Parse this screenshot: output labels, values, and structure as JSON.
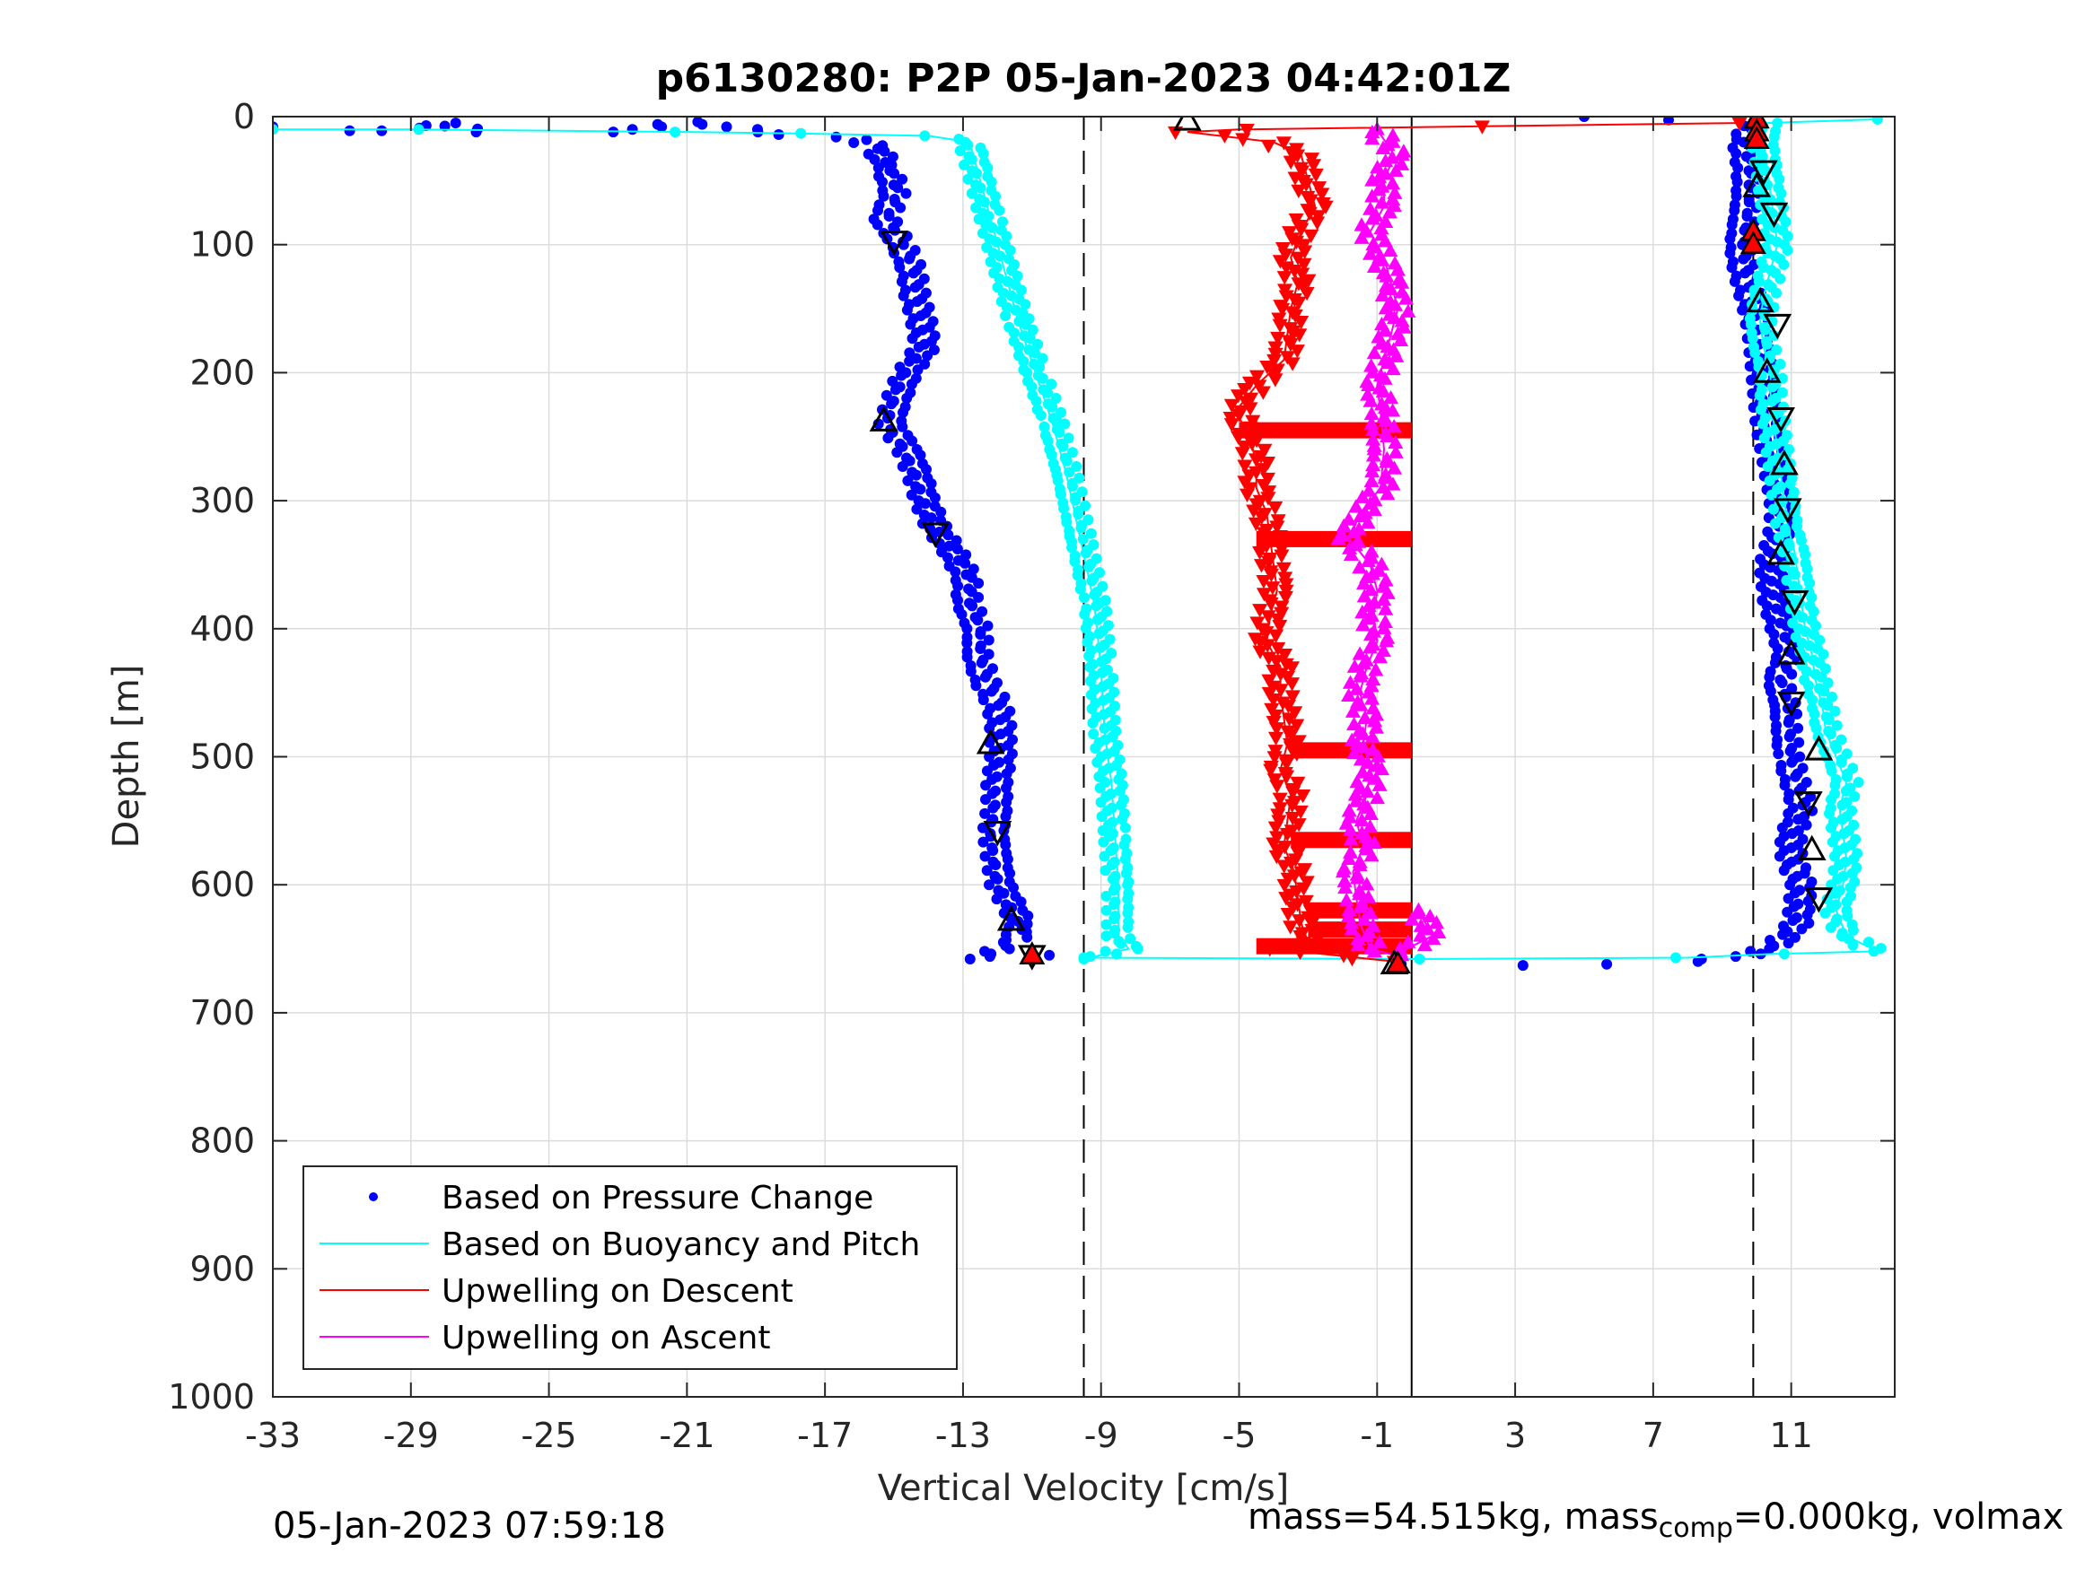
{
  "chart_data": {
    "type": "scatter",
    "title": "p6130280: P2P 05-Jan-2023 04:42:01Z",
    "xlabel": "Vertical Velocity [cm/s]",
    "ylabel": "Depth [m]",
    "xlim": [
      -33,
      14
    ],
    "ylim": [
      1000,
      0
    ],
    "y_reversed": true,
    "grid": true,
    "xticks": [
      -33,
      -29,
      -25,
      -21,
      -17,
      -13,
      -9,
      -5,
      -1,
      3,
      7,
      11
    ],
    "yticks": [
      0,
      100,
      200,
      300,
      400,
      500,
      600,
      700,
      800,
      900,
      1000
    ],
    "legend_position": "lower-left",
    "reference_lines": [
      {
        "x": -9.5,
        "style": "dashed",
        "depth_range": [
          0,
          1000
        ]
      },
      {
        "x": 9.9,
        "style": "dashed",
        "depth_range": [
          0,
          1000
        ]
      },
      {
        "x": 0,
        "style": "solid",
        "depth_range": [
          0,
          1000
        ]
      }
    ],
    "series": [
      {
        "name": "Based on Pressure Change",
        "color": "#0000ff",
        "marker": "dot",
        "descent": [
          [
            -33,
            8
          ],
          [
            -31,
            11
          ],
          [
            -29.5,
            11
          ],
          [
            -28,
            5
          ],
          [
            -27,
            12
          ],
          [
            -23,
            12
          ],
          [
            -21,
            4
          ],
          [
            -18,
            14
          ],
          [
            -16,
            18
          ],
          [
            -15.5,
            25
          ],
          [
            -15.2,
            40
          ],
          [
            -15,
            60
          ],
          [
            -15.3,
            80
          ],
          [
            -14.8,
            100
          ],
          [
            -14.5,
            120
          ],
          [
            -14.4,
            140
          ],
          [
            -14.2,
            160
          ],
          [
            -14.1,
            180
          ],
          [
            -14.6,
            200
          ],
          [
            -14.9,
            220
          ],
          [
            -15.1,
            240
          ],
          [
            -14.6,
            260
          ],
          [
            -14.3,
            280
          ],
          [
            -14.1,
            300
          ],
          [
            -13.8,
            320
          ],
          [
            -13.3,
            340
          ],
          [
            -12.9,
            360
          ],
          [
            -12.9,
            380
          ],
          [
            -12.6,
            400
          ],
          [
            -12.6,
            420
          ],
          [
            -12.4,
            440
          ],
          [
            -12.0,
            460
          ],
          [
            -11.9,
            480
          ],
          [
            -11.9,
            500
          ],
          [
            -12.0,
            520
          ],
          [
            -12.0,
            540
          ],
          [
            -12.1,
            560
          ],
          [
            -12.0,
            580
          ],
          [
            -11.9,
            600
          ],
          [
            -11.5,
            620
          ],
          [
            -11.3,
            635
          ],
          [
            -11.6,
            645
          ],
          [
            -12.0,
            650
          ],
          [
            -12.5,
            658
          ],
          [
            -10.5,
            655
          ]
        ],
        "ascent": [
          [
            -0.3,
            662
          ],
          [
            3,
            663
          ],
          [
            6,
            662
          ],
          [
            8,
            660
          ],
          [
            9.5,
            656
          ],
          [
            10.5,
            650
          ],
          [
            11.2,
            630
          ],
          [
            11.3,
            600
          ],
          [
            11.0,
            580
          ],
          [
            11.0,
            560
          ],
          [
            11.3,
            540
          ],
          [
            10.9,
            500
          ],
          [
            10.8,
            460
          ],
          [
            10.6,
            440
          ],
          [
            10.9,
            420
          ],
          [
            10.7,
            400
          ],
          [
            10.5,
            380
          ],
          [
            10.4,
            350
          ],
          [
            10.7,
            320
          ],
          [
            10.7,
            300
          ],
          [
            10.5,
            270
          ],
          [
            10.3,
            240
          ],
          [
            10.2,
            210
          ],
          [
            10.1,
            180
          ],
          [
            10.0,
            160
          ],
          [
            9.8,
            140
          ],
          [
            9.6,
            120
          ],
          [
            9.5,
            100
          ],
          [
            9.6,
            80
          ],
          [
            9.7,
            60
          ],
          [
            9.7,
            40
          ],
          [
            9.6,
            20
          ],
          [
            9.9,
            5
          ],
          [
            5,
            0
          ]
        ]
      },
      {
        "name": "Based on Buoyancy and Pitch",
        "color": "#00ffff",
        "marker": "line-dot",
        "descent": [
          [
            -33,
            10
          ],
          [
            -29,
            10
          ],
          [
            -21,
            12
          ],
          [
            -18,
            13
          ],
          [
            -14,
            15
          ],
          [
            -12.8,
            20
          ],
          [
            -12.6,
            40
          ],
          [
            -12.2,
            80
          ],
          [
            -11.8,
            120
          ],
          [
            -11.4,
            160
          ],
          [
            -10.9,
            200
          ],
          [
            -10.4,
            240
          ],
          [
            -10.0,
            280
          ],
          [
            -9.6,
            330
          ],
          [
            -9.2,
            380
          ],
          [
            -9.0,
            430
          ],
          [
            -8.9,
            480
          ],
          [
            -8.7,
            520
          ],
          [
            -8.6,
            560
          ],
          [
            -8.5,
            600
          ],
          [
            -8.5,
            640
          ],
          [
            -8.2,
            650
          ],
          [
            -9.5,
            658
          ]
        ],
        "ascent": [
          [
            -9.5,
            657
          ],
          [
            0,
            658
          ],
          [
            8,
            657
          ],
          [
            10.5,
            654
          ],
          [
            13.5,
            652
          ],
          [
            12.6,
            640
          ],
          [
            12.3,
            620
          ],
          [
            12.5,
            600
          ],
          [
            12.6,
            580
          ],
          [
            12.5,
            560
          ],
          [
            12.4,
            540
          ],
          [
            12.6,
            520
          ],
          [
            12.3,
            500
          ],
          [
            12.0,
            480
          ],
          [
            11.9,
            460
          ],
          [
            11.7,
            440
          ],
          [
            11.6,
            420
          ],
          [
            11.4,
            400
          ],
          [
            11.3,
            380
          ],
          [
            11.2,
            360
          ],
          [
            11.1,
            340
          ],
          [
            10.9,
            320
          ],
          [
            10.8,
            300
          ],
          [
            10.7,
            280
          ],
          [
            10.6,
            260
          ],
          [
            10.5,
            240
          ],
          [
            10.4,
            220
          ],
          [
            10.4,
            200
          ],
          [
            10.2,
            180
          ],
          [
            10.1,
            160
          ],
          [
            10.2,
            140
          ],
          [
            10.4,
            120
          ],
          [
            10.6,
            100
          ],
          [
            10.5,
            80
          ],
          [
            10.4,
            60
          ],
          [
            10.3,
            40
          ],
          [
            10.2,
            20
          ],
          [
            10.3,
            5
          ],
          [
            13.5,
            2
          ]
        ]
      },
      {
        "name": "Upwelling on Descent",
        "color": "#ff0000",
        "marker": "triangle-down",
        "profile": [
          [
            9.5,
            5
          ],
          [
            -5,
            10
          ],
          [
            -6.5,
            12
          ],
          [
            -4,
            20
          ],
          [
            -3.2,
            30
          ],
          [
            -3.0,
            50
          ],
          [
            -2.8,
            70
          ],
          [
            -3.2,
            90
          ],
          [
            -3.5,
            110
          ],
          [
            -3.3,
            130
          ],
          [
            -3.5,
            150
          ],
          [
            -3.6,
            170
          ],
          [
            -3.7,
            190
          ],
          [
            -4.5,
            210
          ],
          [
            -5.1,
            230
          ],
          [
            -4.7,
            250
          ],
          [
            -4.5,
            270
          ],
          [
            -4.5,
            290
          ],
          [
            -4.2,
            310
          ],
          [
            -4.1,
            330
          ],
          [
            -4.0,
            350
          ],
          [
            -3.9,
            370
          ],
          [
            -4.1,
            390
          ],
          [
            -4.2,
            410
          ],
          [
            -3.8,
            430
          ],
          [
            -3.8,
            450
          ],
          [
            -3.7,
            470
          ],
          [
            -3.6,
            490
          ],
          [
            -3.8,
            510
          ],
          [
            -3.5,
            530
          ],
          [
            -3.6,
            550
          ],
          [
            -3.7,
            570
          ],
          [
            -3.4,
            590
          ],
          [
            -3.3,
            610
          ],
          [
            -3.2,
            630
          ],
          [
            -3.0,
            645
          ],
          [
            -4.0,
            650
          ],
          [
            -0.5,
            660
          ]
        ],
        "bands": [
          {
            "depth": 245,
            "x_from": -5,
            "x_to": 0
          },
          {
            "depth": 330,
            "x_from": -4.5,
            "x_to": 0
          },
          {
            "depth": 495,
            "x_from": -3.5,
            "x_to": 0
          },
          {
            "depth": 565,
            "x_from": -3.5,
            "x_to": 0
          },
          {
            "depth": 620,
            "x_from": -3.0,
            "x_to": 0
          },
          {
            "depth": 635,
            "x_from": -3.0,
            "x_to": 0
          },
          {
            "depth": 648,
            "x_from": -4.5,
            "x_to": 0
          }
        ]
      },
      {
        "name": "Upwelling on Ascent",
        "color": "#ff00ff",
        "marker": "triangle-up",
        "profile": [
          [
            -1,
            10
          ],
          [
            -0.5,
            30
          ],
          [
            -0.8,
            50
          ],
          [
            -0.8,
            70
          ],
          [
            -1.2,
            90
          ],
          [
            -0.8,
            110
          ],
          [
            -0.6,
            130
          ],
          [
            -0.4,
            150
          ],
          [
            -0.6,
            170
          ],
          [
            -0.8,
            190
          ],
          [
            -1.0,
            210
          ],
          [
            -0.9,
            230
          ],
          [
            -0.8,
            260
          ],
          [
            -0.9,
            290
          ],
          [
            -1.5,
            310
          ],
          [
            -1.8,
            330
          ],
          [
            -1.2,
            350
          ],
          [
            -1.0,
            370
          ],
          [
            -1.1,
            390
          ],
          [
            -1.0,
            410
          ],
          [
            -1.3,
            430
          ],
          [
            -1.5,
            450
          ],
          [
            -1.3,
            470
          ],
          [
            -1.4,
            490
          ],
          [
            -1.2,
            510
          ],
          [
            -1.3,
            530
          ],
          [
            -1.6,
            550
          ],
          [
            -1.4,
            570
          ],
          [
            -1.7,
            590
          ],
          [
            -1.6,
            610
          ],
          [
            -1.5,
            630
          ],
          [
            -1.2,
            650
          ],
          [
            -0.5,
            655
          ],
          [
            0.6,
            640
          ],
          [
            0.2,
            620
          ]
        ]
      },
      {
        "name": "",
        "color": "#000000",
        "marker": "triangle-outline",
        "points": [
          [
            -6.5,
            3
          ],
          [
            -15,
            97
          ],
          [
            -15.3,
            238
          ],
          [
            -13.8,
            325
          ],
          [
            -12.2,
            490
          ],
          [
            -12.0,
            558
          ],
          [
            -11.6,
            628
          ],
          [
            -11.0,
            655
          ],
          [
            -0.5,
            662
          ],
          [
            10.2,
            42
          ],
          [
            10.0,
            55
          ],
          [
            10.5,
            75
          ],
          [
            10.1,
            145
          ],
          [
            10.6,
            162
          ],
          [
            10.3,
            200
          ],
          [
            10.7,
            235
          ],
          [
            10.8,
            272
          ],
          [
            10.9,
            306
          ],
          [
            10.7,
            342
          ],
          [
            11.1,
            378
          ],
          [
            11.0,
            420
          ],
          [
            11.0,
            457
          ],
          [
            11.8,
            495
          ],
          [
            11.5,
            535
          ],
          [
            11.6,
            573
          ],
          [
            11.8,
            610
          ]
        ]
      },
      {
        "name": "",
        "color": "#ff0000",
        "marker": "filled-triangle",
        "points": [
          [
            10,
            2
          ],
          [
            10,
            12
          ],
          [
            10,
            18
          ],
          [
            9.9,
            90
          ],
          [
            9.9,
            100
          ],
          [
            -11.0,
            655
          ],
          [
            -0.4,
            662
          ]
        ]
      }
    ]
  },
  "footer": {
    "timestamp": "05-Jan-2023 07:59:18",
    "mass_text": "mass=54.515kg, mass",
    "mass_sub": "comp",
    "mass_rest": "=0.000kg, volmax"
  }
}
